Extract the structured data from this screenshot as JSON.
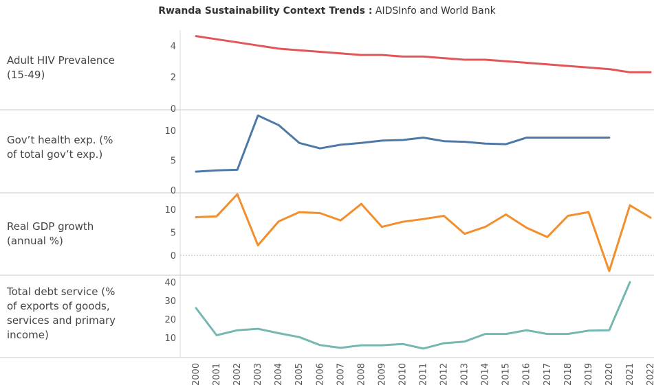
{
  "title": {
    "bold": "Rwanda Sustainability Context Trends :",
    "rest": " AIDSInfo and World Bank"
  },
  "chart_data": {
    "type": "line",
    "x": [
      "2000",
      "2001",
      "2002",
      "2003",
      "2004",
      "2005",
      "2006",
      "2007",
      "2008",
      "2009",
      "2010",
      "2011",
      "2012",
      "2013",
      "2014",
      "2015",
      "2016",
      "2017",
      "2018",
      "2019",
      "2020",
      "2021",
      "2022"
    ],
    "panels": [
      {
        "label": "Adult HIV Prevalence (15-49)",
        "label_lines": [
          "Adult HIV Prevalence",
          "(15-49)"
        ],
        "color": "#e15759",
        "ylim": [
          0,
          4.8
        ],
        "yticks": [
          0,
          2,
          4
        ],
        "values": [
          4.6,
          4.4,
          4.2,
          4.0,
          3.8,
          3.7,
          3.6,
          3.5,
          3.4,
          3.4,
          3.3,
          3.3,
          3.2,
          3.1,
          3.1,
          3.0,
          2.9,
          2.8,
          2.7,
          2.6,
          2.5,
          2.3,
          2.3
        ]
      },
      {
        "label": "Gov’t health exp. (% of total gov’t exp.)",
        "label_lines": [
          "Gov’t health exp. (%",
          "of total gov’t exp.)"
        ],
        "color": "#4e79a7",
        "ylim": [
          0,
          13
        ],
        "yticks": [
          0,
          5,
          10
        ],
        "values": [
          3.1,
          3.3,
          3.4,
          12.5,
          10.9,
          7.9,
          7.0,
          7.6,
          7.9,
          8.3,
          8.4,
          8.8,
          8.2,
          8.1,
          7.8,
          7.7,
          8.8,
          8.8,
          8.8,
          8.8,
          8.8,
          null,
          null
        ]
      },
      {
        "label": "Real GDP growth (annual %)",
        "label_lines": [
          "Real GDP growth",
          "(annual %)"
        ],
        "color": "#f28e2b",
        "ylim": [
          -4,
          13
        ],
        "yticks": [
          0,
          5,
          10
        ],
        "zero_line": true,
        "values": [
          8.3,
          8.5,
          13.3,
          2.2,
          7.4,
          9.4,
          9.2,
          7.6,
          11.2,
          6.2,
          7.3,
          7.9,
          8.6,
          4.7,
          6.2,
          8.9,
          6.0,
          4.0,
          8.6,
          9.4,
          -3.4,
          10.9,
          8.2
        ]
      },
      {
        "label": "Total debt service (% of exports of goods, services and primary income)",
        "label_lines": [
          "Total debt service (%",
          "of exports of goods,",
          "services and primary",
          "income)"
        ],
        "color": "#76b7b2",
        "ylim": [
          0,
          43
        ],
        "yticks": [
          10,
          20,
          30,
          40
        ],
        "values": [
          26.0,
          11.3,
          14.0,
          14.8,
          12.4,
          10.3,
          6.0,
          4.5,
          5.9,
          5.9,
          6.6,
          4.1,
          7.0,
          7.9,
          12.0,
          12.0,
          14.0,
          12.0,
          12.0,
          13.8,
          14.0,
          40.0,
          null
        ]
      }
    ]
  }
}
